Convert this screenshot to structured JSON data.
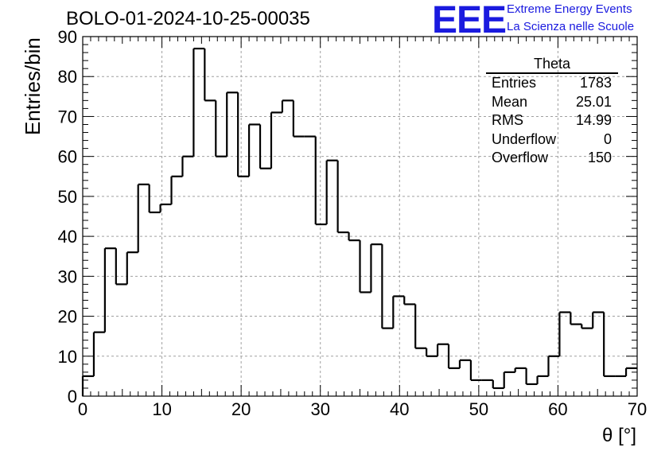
{
  "title": "BOLO-01-2024-10-25-00035",
  "logo": {
    "mark": "EEE",
    "line1": "Extreme Energy Events",
    "line2": "La Scienza nelle Scuole",
    "color": "#1a1adf"
  },
  "stats": {
    "title": "Theta",
    "rows": [
      {
        "label": "Entries",
        "value": "1783"
      },
      {
        "label": "Mean",
        "value": "25.01"
      },
      {
        "label": "RMS",
        "value": "14.99"
      },
      {
        "label": "Underflow",
        "value": "0"
      },
      {
        "label": "Overflow",
        "value": "150"
      }
    ]
  },
  "chart_data": {
    "type": "bar",
    "histogram": true,
    "xlabel": "θ [°]",
    "ylabel": "Entries/bin",
    "xlim": [
      0,
      70
    ],
    "ylim": [
      0,
      90
    ],
    "bin_width": 1.4,
    "xticks": [
      0,
      10,
      20,
      30,
      40,
      50,
      60,
      70
    ],
    "yticks": [
      0,
      10,
      20,
      30,
      40,
      50,
      60,
      70,
      80,
      90
    ],
    "grid": true,
    "values": [
      5,
      16,
      37,
      28,
      36,
      53,
      46,
      48,
      55,
      60,
      87,
      74,
      60,
      76,
      55,
      68,
      57,
      71,
      74,
      65,
      65,
      43,
      59,
      41,
      39,
      26,
      38,
      17,
      25,
      23,
      12,
      10,
      13,
      7,
      9,
      4,
      4,
      2,
      6,
      7,
      3,
      5,
      10,
      21,
      18,
      17,
      21,
      5,
      5,
      7
    ]
  }
}
